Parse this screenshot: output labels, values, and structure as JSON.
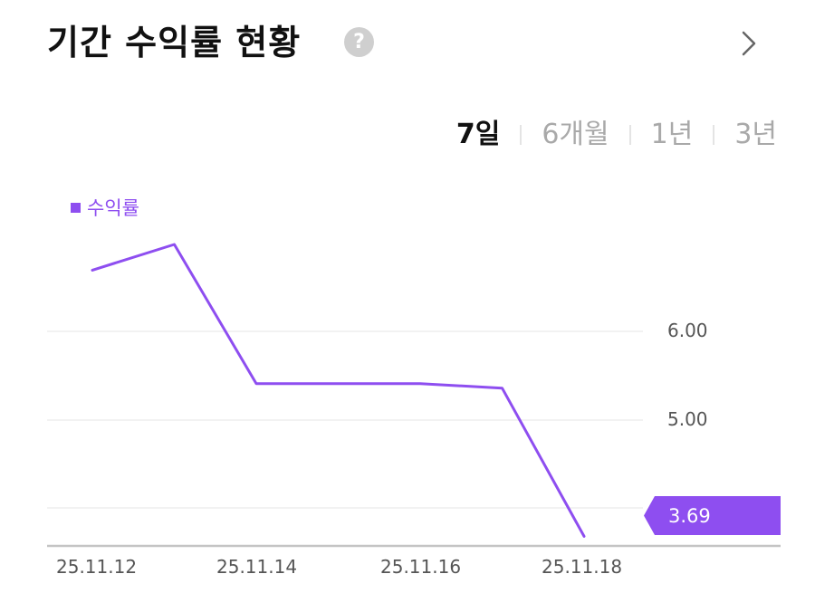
{
  "header": {
    "title": "기간 수익률 현황",
    "help_icon": "question-circle-icon",
    "help_glyph": "?",
    "more_icon": "chevron-right-icon"
  },
  "periods": [
    {
      "label": "7일",
      "active": true
    },
    {
      "label": "6개월",
      "active": false
    },
    {
      "label": "1년",
      "active": false
    },
    {
      "label": "3년",
      "active": false
    }
  ],
  "legend": {
    "label": "수익률",
    "color": "#8e4ef0"
  },
  "y_ticks": [
    "6.00",
    "5.00"
  ],
  "x_ticks": [
    "25.11.12",
    "25.11.14",
    "25.11.16",
    "25.11.18"
  ],
  "last_value_label": "3.69",
  "colors": {
    "series": "#8e4ef0",
    "grid": "#eeeeee",
    "axis": "#c4c4c4"
  },
  "chart_data": {
    "type": "line",
    "title": "기간 수익률 현황",
    "x": [
      "25.11.12",
      "25.11.13",
      "25.11.14",
      "25.11.15",
      "25.11.16",
      "25.11.17",
      "25.11.18"
    ],
    "series": [
      {
        "name": "수익률",
        "values": [
          6.69,
          6.98,
          5.41,
          5.41,
          5.41,
          5.36,
          3.69
        ]
      }
    ],
    "xlabel": "",
    "ylabel": "",
    "y_tick_labels": [
      "6.00",
      "5.00"
    ],
    "gridlines_at": [
      6.0,
      5.0,
      4.0
    ],
    "ylim": [
      3.6,
      7.1
    ],
    "grid": true,
    "legend_position": "top-left",
    "last_value_annotation": "3.69",
    "selected_period": "7일"
  }
}
